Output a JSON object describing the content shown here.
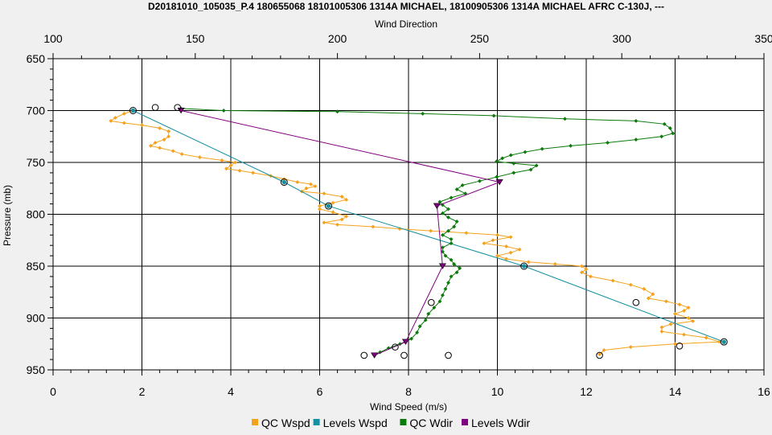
{
  "chart_data": {
    "type": "line",
    "title": "D20181010_105035_P.4 180655068 18101005306 1314A MICHAEL, 18100905306 1314A MICHAEL AFRC C-130J, ---",
    "x_bottom": {
      "label": "Wind Speed (m/s)",
      "range": [
        0,
        16
      ],
      "ticks": [
        "0",
        "2",
        "4",
        "6",
        "8",
        "10",
        "12",
        "14",
        "16"
      ]
    },
    "x_top": {
      "label": "Wind Direction",
      "range": [
        100,
        350
      ],
      "ticks": [
        "100",
        "150",
        "200",
        "250",
        "300",
        "350"
      ]
    },
    "y": {
      "label": "Pressure (mb)",
      "range": [
        650,
        950
      ],
      "inverted": true,
      "ticks": [
        "650",
        "700",
        "750",
        "800",
        "850",
        "900",
        "950"
      ]
    },
    "grid": true,
    "legend_position": "bottom",
    "series": [
      {
        "name": "QC Wspd",
        "axis": "bottom",
        "color": "#f5a21b",
        "marker": "small-diamond",
        "points": [
          [
            1.8,
            700
          ],
          [
            1.6,
            703
          ],
          [
            1.4,
            707
          ],
          [
            1.3,
            710
          ],
          [
            1.6,
            712
          ],
          [
            2.0,
            714
          ],
          [
            2.4,
            717
          ],
          [
            2.6,
            720
          ],
          [
            2.6,
            725
          ],
          [
            2.5,
            728
          ],
          [
            2.3,
            731
          ],
          [
            2.2,
            734
          ],
          [
            2.4,
            736
          ],
          [
            2.7,
            739
          ],
          [
            2.9,
            742
          ],
          [
            3.3,
            745
          ],
          [
            3.8,
            748
          ],
          [
            4.1,
            750
          ],
          [
            4.0,
            753
          ],
          [
            3.9,
            756
          ],
          [
            4.2,
            758
          ],
          [
            4.5,
            760
          ],
          [
            4.9,
            763
          ],
          [
            5.2,
            766
          ],
          [
            5.5,
            769
          ],
          [
            5.8,
            771
          ],
          [
            5.9,
            773
          ],
          [
            5.7,
            775
          ],
          [
            5.6,
            778
          ],
          [
            6.1,
            780
          ],
          [
            6.5,
            783
          ],
          [
            6.6,
            786
          ],
          [
            6.3,
            789
          ],
          [
            6.0,
            792
          ],
          [
            6.0,
            795
          ],
          [
            6.3,
            798
          ],
          [
            6.6,
            802
          ],
          [
            6.5,
            805
          ],
          [
            6.1,
            808
          ],
          [
            6.4,
            810
          ],
          [
            7.2,
            812
          ],
          [
            7.8,
            814
          ],
          [
            8.5,
            816
          ],
          [
            9.3,
            818
          ],
          [
            10.0,
            820
          ],
          [
            10.3,
            822
          ],
          [
            9.9,
            825
          ],
          [
            9.7,
            828
          ],
          [
            10.2,
            831
          ],
          [
            10.5,
            834
          ],
          [
            10.3,
            837
          ],
          [
            10.0,
            840
          ],
          [
            10.2,
            843
          ],
          [
            10.7,
            846
          ],
          [
            11.3,
            848
          ],
          [
            11.9,
            850
          ],
          [
            12.0,
            853
          ],
          [
            11.9,
            856
          ],
          [
            12.1,
            860
          ],
          [
            12.6,
            864
          ],
          [
            13.0,
            868
          ],
          [
            13.3,
            872
          ],
          [
            13.5,
            877
          ],
          [
            13.4,
            881
          ],
          [
            13.8,
            884
          ],
          [
            14.1,
            887
          ],
          [
            14.3,
            890
          ],
          [
            14.2,
            893
          ],
          [
            14.0,
            896
          ],
          [
            14.3,
            900
          ],
          [
            14.4,
            903
          ],
          [
            13.9,
            906
          ],
          [
            13.7,
            909
          ],
          [
            13.7,
            913
          ],
          [
            14.2,
            916
          ],
          [
            14.7,
            919
          ],
          [
            15.0,
            923
          ],
          [
            14.0,
            925
          ],
          [
            13.0,
            928
          ],
          [
            12.4,
            931
          ],
          [
            12.3,
            935
          ]
        ]
      },
      {
        "name": "Levels Wspd",
        "axis": "bottom",
        "color": "#1590a0",
        "marker": "circle",
        "points": [
          [
            1.8,
            700
          ],
          [
            5.2,
            769
          ],
          [
            6.2,
            792
          ],
          [
            10.6,
            850
          ],
          [
            15.1,
            923
          ]
        ]
      },
      {
        "name": "QC Wdir",
        "axis": "top",
        "color": "#0a7a0a",
        "marker": "small-diamond",
        "points": [
          [
            145,
            698
          ],
          [
            160,
            700
          ],
          [
            200,
            701
          ],
          [
            230,
            703
          ],
          [
            255,
            705
          ],
          [
            280,
            708
          ],
          [
            305,
            710
          ],
          [
            315,
            713
          ],
          [
            317,
            717
          ],
          [
            318,
            722
          ],
          [
            314,
            725
          ],
          [
            305,
            728
          ],
          [
            295,
            731
          ],
          [
            282,
            734
          ],
          [
            272,
            737
          ],
          [
            266,
            740
          ],
          [
            261,
            743
          ],
          [
            258,
            746
          ],
          [
            256,
            749
          ],
          [
            262,
            751
          ],
          [
            270,
            753
          ],
          [
            268,
            757
          ],
          [
            262,
            760
          ],
          [
            256,
            764
          ],
          [
            250,
            768
          ],
          [
            244,
            772
          ],
          [
            242,
            776
          ],
          [
            245,
            780
          ],
          [
            240,
            784
          ],
          [
            236,
            788
          ],
          [
            237,
            791
          ],
          [
            239,
            795
          ],
          [
            237,
            799
          ],
          [
            239,
            803
          ],
          [
            242,
            807
          ],
          [
            241,
            812
          ],
          [
            239,
            816
          ],
          [
            237,
            820
          ],
          [
            240,
            824
          ],
          [
            240,
            828
          ],
          [
            237,
            832
          ],
          [
            237,
            836
          ],
          [
            238,
            840
          ],
          [
            240,
            844
          ],
          [
            241,
            848
          ],
          [
            243,
            852
          ],
          [
            242,
            856
          ],
          [
            240,
            860
          ],
          [
            239,
            866
          ],
          [
            238,
            872
          ],
          [
            237,
            878
          ],
          [
            236,
            884
          ],
          [
            234,
            890
          ],
          [
            232,
            896
          ],
          [
            231,
            902
          ],
          [
            229,
            908
          ],
          [
            228,
            914
          ],
          [
            226,
            920
          ],
          [
            222,
            925
          ],
          [
            218,
            929
          ],
          [
            215,
            933
          ],
          [
            213,
            936
          ]
        ]
      },
      {
        "name": "Levels Wdir",
        "axis": "top",
        "color": "#800080",
        "marker": "triangle-down",
        "points": [
          [
            145,
            700
          ],
          [
            257,
            769
          ],
          [
            235,
            792
          ],
          [
            237,
            850
          ],
          [
            224,
            923
          ],
          [
            213,
            936
          ]
        ]
      }
    ],
    "extra_markers": [
      {
        "axis": "bottom",
        "shape": "circle",
        "points": [
          [
            2.3,
            697
          ],
          [
            2.8,
            697
          ],
          [
            7.7,
            928
          ],
          [
            7.0,
            936
          ],
          [
            7.9,
            936
          ],
          [
            12.3,
            936
          ],
          [
            14.1,
            927
          ]
        ]
      },
      {
        "axis": "top",
        "shape": "circle",
        "points": [
          [
            233,
            885
          ],
          [
            305,
            885
          ],
          [
            239,
            936
          ]
        ]
      }
    ]
  }
}
